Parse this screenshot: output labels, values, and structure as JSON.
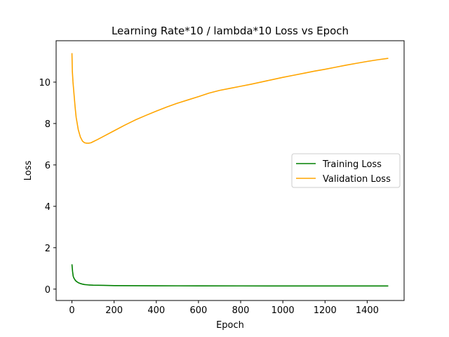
{
  "chart_data": {
    "type": "line",
    "title": "Learning Rate*10 / lambda*10 Loss vs Epoch",
    "xlabel": "Epoch",
    "ylabel": "Loss",
    "xlim": [
      -75,
      1575
    ],
    "ylim": [
      -0.55,
      12.0
    ],
    "xticks": [
      0,
      200,
      400,
      600,
      800,
      1000,
      1200,
      1400
    ],
    "yticks": [
      0,
      2,
      4,
      6,
      8,
      10
    ],
    "legend_position": "center-right",
    "grid": false,
    "series": [
      {
        "name": "Training Loss",
        "color": "#008000",
        "x": [
          0,
          3,
          6,
          10,
          15,
          20,
          30,
          40,
          50,
          60,
          80,
          100,
          150,
          200,
          300,
          400,
          500,
          600,
          800,
          1000,
          1200,
          1400,
          1500
        ],
        "y": [
          1.2,
          0.85,
          0.62,
          0.52,
          0.44,
          0.38,
          0.31,
          0.27,
          0.24,
          0.22,
          0.2,
          0.19,
          0.18,
          0.17,
          0.165,
          0.16,
          0.158,
          0.156,
          0.154,
          0.152,
          0.151,
          0.15,
          0.15
        ]
      },
      {
        "name": "Validation Loss",
        "color": "#FFA500",
        "x": [
          0,
          2,
          5,
          10,
          15,
          20,
          30,
          40,
          50,
          60,
          70,
          80,
          90,
          100,
          120,
          150,
          200,
          250,
          300,
          350,
          400,
          450,
          500,
          550,
          600,
          650,
          700,
          750,
          800,
          850,
          900,
          950,
          1000,
          1050,
          1100,
          1150,
          1200,
          1250,
          1300,
          1350,
          1400,
          1450,
          1500
        ],
        "y": [
          11.4,
          10.5,
          10.0,
          9.4,
          8.8,
          8.3,
          7.7,
          7.35,
          7.15,
          7.07,
          7.05,
          7.05,
          7.07,
          7.12,
          7.22,
          7.38,
          7.65,
          7.92,
          8.17,
          8.39,
          8.6,
          8.8,
          8.98,
          9.14,
          9.3,
          9.47,
          9.6,
          9.7,
          9.8,
          9.9,
          10.01,
          10.12,
          10.23,
          10.33,
          10.43,
          10.53,
          10.62,
          10.72,
          10.82,
          10.91,
          11.0,
          11.08,
          11.15
        ]
      }
    ]
  }
}
